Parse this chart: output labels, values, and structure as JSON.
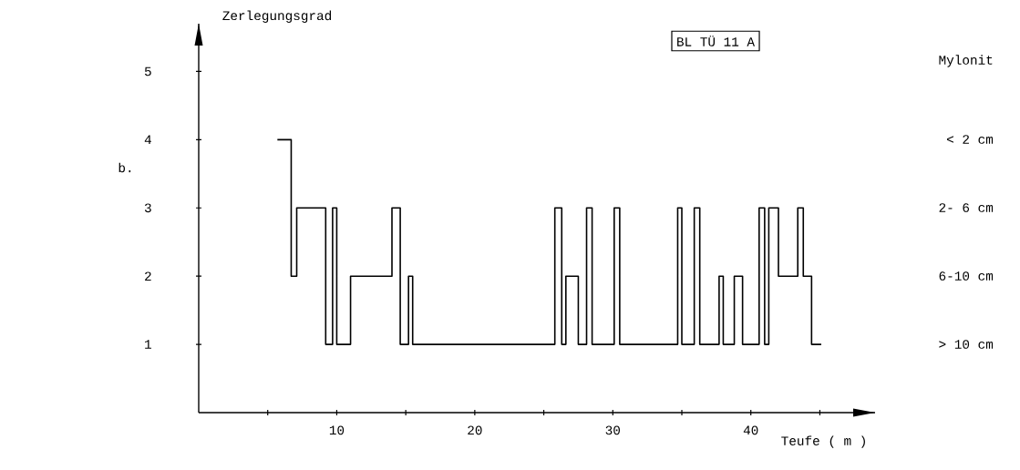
{
  "chart_data": {
    "type": "step",
    "xlabel": "Teufe ( m )",
    "ylabel": "Zerlegungsgrad",
    "annotations": [
      "BL TÜ 11 A",
      "b.",
      "Mylonit",
      "< 2 cm",
      "2- 6 cm",
      "6-10 cm",
      "> 10 cm"
    ],
    "x": [
      5.7,
      6.7,
      7.1,
      9.2,
      9.7,
      10.0,
      11.0,
      14.0,
      14.6,
      15.2,
      15.5,
      25.8,
      26.3,
      26.6,
      27.5,
      28.1,
      28.5,
      30.1,
      30.5,
      34.7,
      35.0,
      35.9,
      36.3,
      37.7,
      38.0,
      38.8,
      39.4,
      40.6,
      41.0,
      41.3,
      42.0,
      43.4,
      43.8,
      44.4,
      45.1
    ],
    "series": [
      {
        "color": "#000000",
        "values": [
          4,
          2,
          3,
          1,
          3,
          1,
          2,
          3,
          1,
          2,
          1,
          3,
          1,
          2,
          1,
          3,
          1,
          3,
          1,
          3,
          1,
          3,
          1,
          2,
          1,
          2,
          1,
          3,
          1,
          3,
          2,
          3,
          2,
          1,
          1
        ]
      }
    ],
    "xlim": [
      0,
      49
    ],
    "ylim": [
      0,
      5.7
    ],
    "xticks": [
      {
        "value": 5,
        "label": null
      },
      10,
      {
        "value": 15,
        "label": null
      },
      20,
      {
        "value": 25,
        "label": null
      },
      30,
      {
        "value": 35,
        "label": null
      },
      40,
      {
        "value": 45,
        "label": null
      }
    ],
    "yticks": [
      1,
      2,
      3,
      4,
      5
    ],
    "grid": false
  }
}
